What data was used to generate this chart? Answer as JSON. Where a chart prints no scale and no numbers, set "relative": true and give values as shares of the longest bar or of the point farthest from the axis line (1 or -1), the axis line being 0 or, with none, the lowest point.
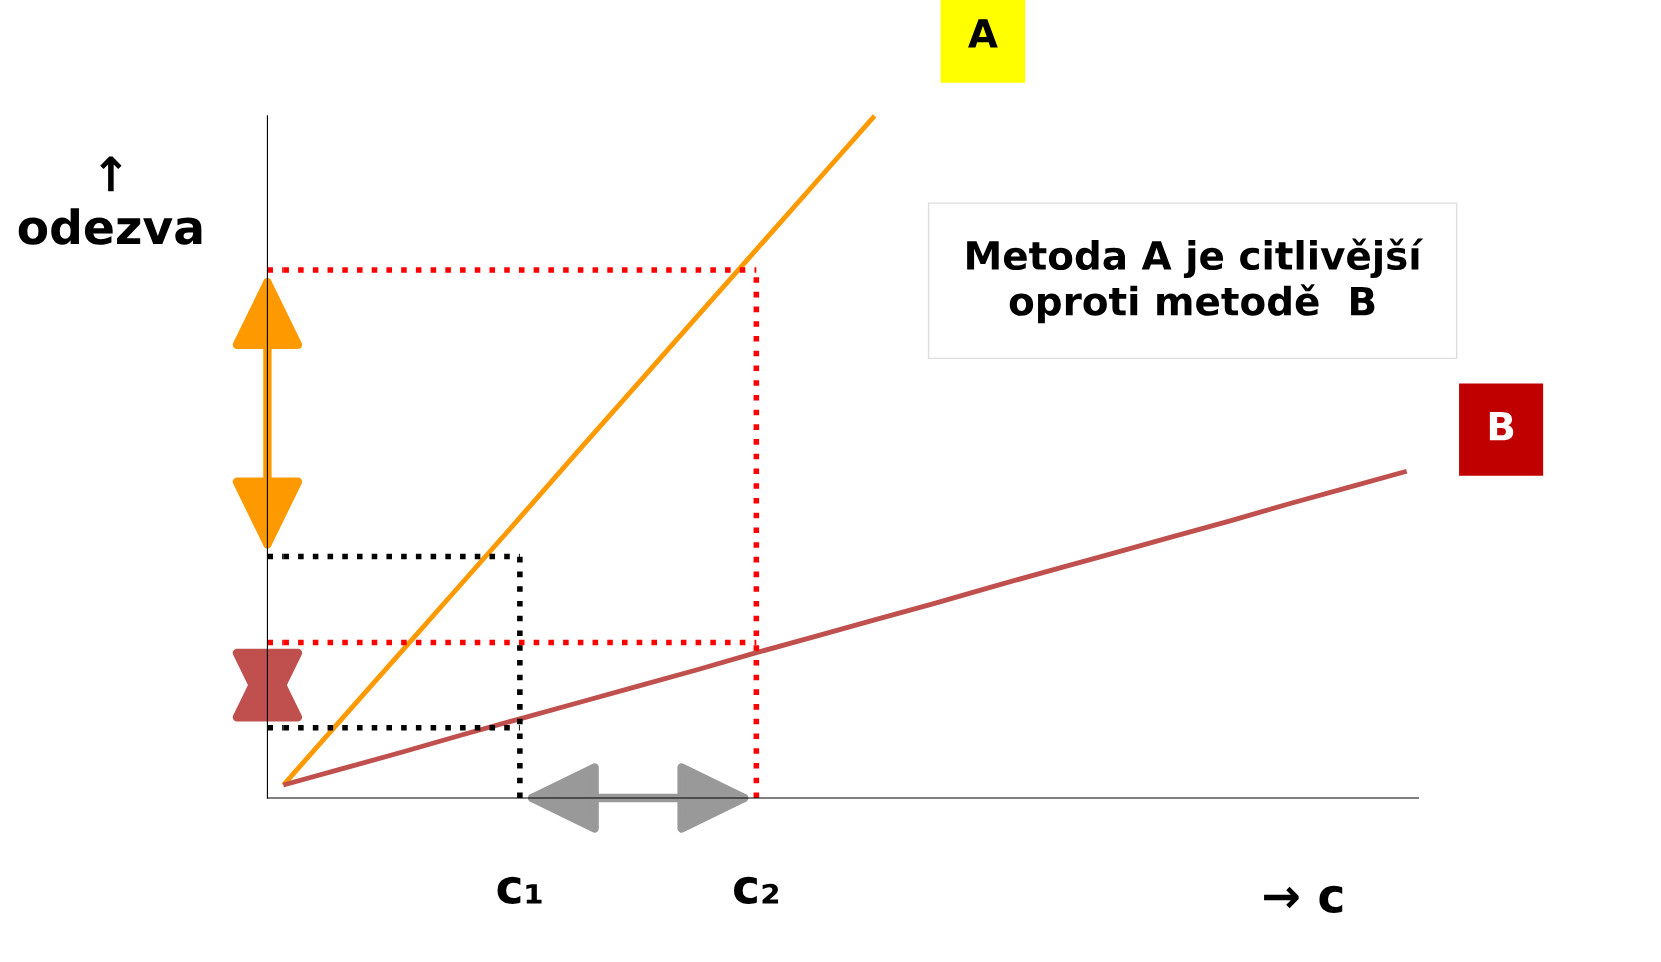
{
  "chart_data": {
    "type": "line",
    "relative": true,
    "xlabel": "→ c",
    "ylabel": "↑\nodezva",
    "categories": [
      null,
      null,
      null,
      null,
      "c₁",
      null,
      null,
      null,
      "c₂",
      null,
      null,
      null,
      null,
      null,
      null,
      null,
      null,
      null,
      null,
      null
    ],
    "tick_labels": "x",
    "grid": false,
    "legend": false,
    "series": [
      {
        "name": "A",
        "color": "#ff9900",
        "values": [
          0.019,
          0.117,
          0.215,
          0.313,
          0.411,
          0.51,
          0.608,
          0.706,
          0.804,
          0.902,
          1,
          null,
          null,
          null,
          null,
          null,
          null,
          null,
          null,
          null
        ]
      },
      {
        "name": "B",
        "color": "#c0504d",
        "values": [
          0.019,
          0.043,
          0.067,
          0.092,
          0.116,
          0.14,
          0.164,
          0.188,
          0.213,
          0.237,
          0.261,
          0.285,
          0.31,
          0.334,
          0.358,
          0.382,
          0.406,
          0.431,
          0.455,
          0.479
        ]
      },
      {
        "color": "#000000",
        "line_style": "dotted",
        "values": [
          0.354,
          0.354,
          0.354,
          0.354,
          0.354,
          null,
          null,
          null,
          null,
          null,
          null,
          null,
          null,
          null,
          null,
          null,
          null,
          null,
          null,
          null
        ]
      },
      {
        "color": "#000000",
        "line_style": "dotted",
        "values": [
          0.103,
          0.103,
          0.103,
          0.103,
          0.103,
          null,
          null,
          null,
          null,
          null,
          null,
          null,
          null,
          null,
          null,
          null,
          null,
          null,
          null,
          null
        ]
      },
      {
        "color": "#ff0000",
        "line_style": "dotted",
        "values": [
          0.774,
          0.774,
          0.774,
          0.774,
          0.774,
          0.774,
          0.774,
          0.774,
          0.774,
          null,
          null,
          null,
          null,
          null,
          null,
          null,
          null,
          null,
          null,
          null
        ]
      },
      {
        "color": "#ff0000",
        "line_style": "dotted",
        "values": [
          0.228,
          0.228,
          0.228,
          0.228,
          0.228,
          0.228,
          0.228,
          0.228,
          0.228,
          null,
          null,
          null,
          null,
          null,
          null,
          null,
          null,
          null,
          null,
          null
        ]
      }
    ],
    "ref_lines": [
      {
        "axis": "x",
        "value": "c₁",
        "color": "#000000",
        "line_style": "dotted"
      },
      {
        "axis": "x",
        "value": "c₂",
        "color": "#ff0000",
        "line_style": "dotted"
      }
    ],
    "annotations": [
      "Metoda A je citlivější\noproti metodě  B"
    ]
  }
}
